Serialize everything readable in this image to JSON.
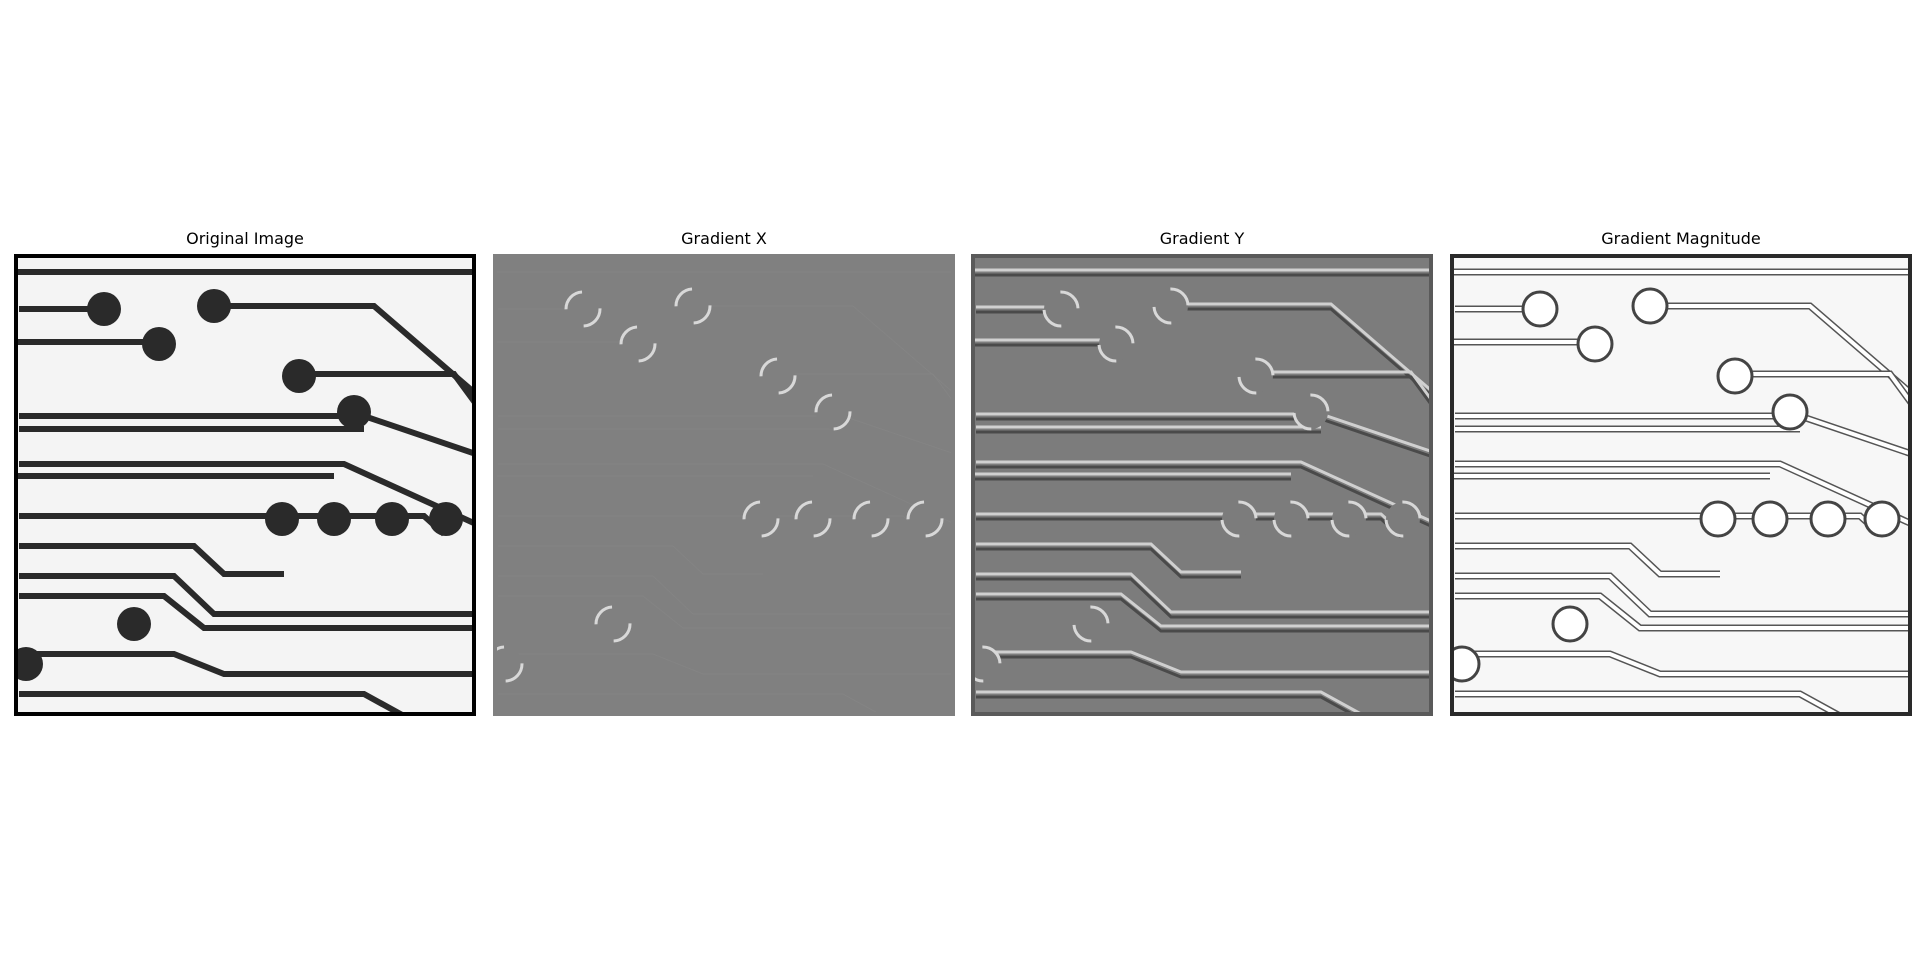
{
  "panels": [
    {
      "title": "Original Image",
      "style": "original",
      "bg": "#f4f4f4",
      "trace": "#2a2a2a",
      "pad": "#2a2a2a",
      "frame": "#000000"
    },
    {
      "title": "Gradient X",
      "style": "grad-x",
      "bg": "#808080",
      "trace": "#8a8a8a",
      "pad": "#808080",
      "frame": "#808080"
    },
    {
      "title": "Gradient Y",
      "style": "grad-y",
      "bg": "#7c7c7c",
      "trace": "#9a9a9a",
      "pad": "#7c7c7c",
      "frame": "#5a5a5a"
    },
    {
      "title": "Gradient Magnitude",
      "style": "magnitude",
      "bg": "#f7f7f7",
      "trace": "#ffffff",
      "pad": "#ffffff",
      "frame": "#2a2a2a"
    }
  ]
}
